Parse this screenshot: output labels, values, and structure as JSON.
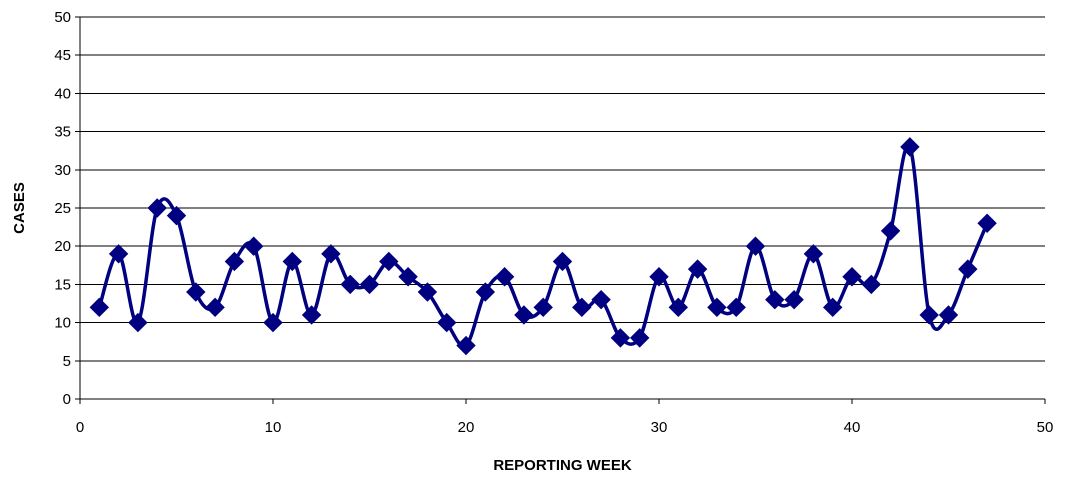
{
  "chart_data": {
    "type": "line",
    "xlabel": "REPORTING WEEK",
    "ylabel": "CASES",
    "xlim": [
      0,
      50
    ],
    "ylim": [
      0,
      50
    ],
    "x_ticks": [
      0,
      10,
      20,
      30,
      40,
      50
    ],
    "y_ticks": [
      0,
      5,
      10,
      15,
      20,
      25,
      30,
      35,
      40,
      45,
      50
    ],
    "grid": "horizontal",
    "legend": "none",
    "smoothed": true,
    "marker": "diamond",
    "line_color": "#000080",
    "series": [
      {
        "x": [
          1,
          2,
          3,
          4,
          5,
          6,
          7,
          8,
          9,
          10,
          11,
          12,
          13,
          14,
          15,
          16,
          17,
          18,
          19,
          20,
          21,
          22,
          23,
          24,
          25,
          26,
          27,
          28,
          29,
          30,
          31,
          32,
          33,
          34,
          35,
          36,
          37,
          38,
          39,
          40,
          41,
          42,
          43,
          44,
          45,
          46,
          47
        ],
        "values": [
          12,
          19,
          10,
          25,
          24,
          14,
          12,
          18,
          20,
          10,
          18,
          11,
          19,
          15,
          15,
          18,
          16,
          14,
          10,
          7,
          14,
          16,
          11,
          12,
          18,
          12,
          13,
          8,
          8,
          16,
          12,
          17,
          12,
          12,
          20,
          13,
          13,
          19,
          12,
          16,
          15,
          22,
          33,
          11,
          11,
          17,
          23
        ]
      }
    ]
  }
}
